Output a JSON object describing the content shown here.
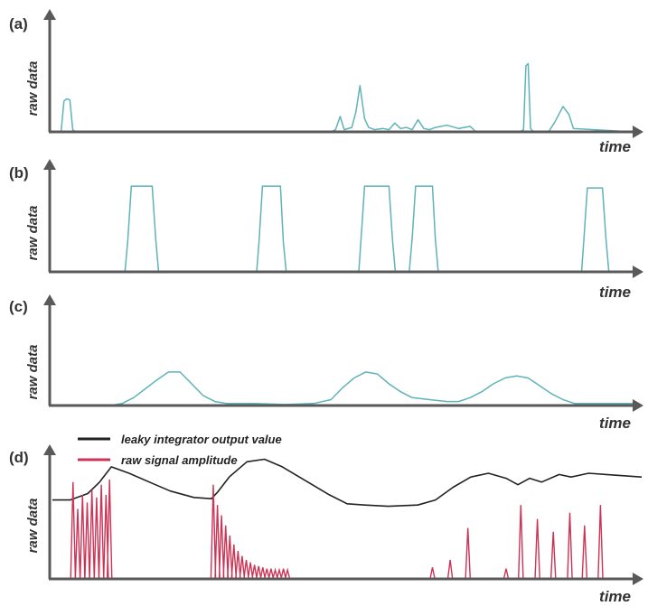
{
  "colors": {
    "axis": "#595959",
    "teal": "#5fb3b8",
    "black": "#222222",
    "red": "#cc3355"
  },
  "chart_data": [
    {
      "type": "line",
      "panel_label": "(a)",
      "xlabel": "time",
      "ylabel": "raw data",
      "xlim": [
        0,
        100
      ],
      "ylim": [
        0,
        100
      ],
      "grid": false,
      "series": [
        {
          "color": "#5fb3b8",
          "x": [
            0,
            1.5,
            2.0,
            2.5,
            3.0,
            3.5,
            4.0,
            48,
            48.8,
            49.6,
            50.3,
            51.6,
            52.3,
            53.0,
            53.8,
            54.5,
            55.5,
            57.0,
            58.0,
            59.0,
            60.0,
            61.0,
            62.0,
            63.0,
            64.0,
            65.0,
            66.0,
            68.0,
            70.0,
            72.0,
            73.0,
            80.5,
            81.2,
            81.6,
            82.0,
            82.4,
            82.9,
            85.5,
            86.5,
            87.2,
            88.0,
            89.0,
            89.8,
            100
          ],
          "y": [
            0,
            0,
            28,
            30,
            29,
            2,
            0,
            0,
            2,
            14,
            2,
            4,
            18,
            42,
            12,
            4,
            2,
            3,
            2,
            8,
            3,
            4,
            2,
            11,
            3,
            2,
            4,
            6,
            3,
            5,
            0,
            0,
            2,
            60,
            62,
            3,
            0,
            0,
            8,
            15,
            23,
            16,
            3,
            0
          ]
        }
      ]
    },
    {
      "type": "line",
      "panel_label": "(b)",
      "xlabel": "time",
      "ylabel": "raw data",
      "xlim": [
        0,
        100
      ],
      "ylim": [
        0,
        100
      ],
      "grid": false,
      "series": [
        {
          "color": "#5fb3b8",
          "x": [
            0,
            12.5,
            13.0,
            13.6,
            17.2,
            17.8,
            18.3,
            35.2,
            35.6,
            36.2,
            39.3,
            39.8,
            40.3,
            52.8,
            53.2,
            53.8,
            58.0,
            58.6,
            59.1,
            61.5,
            62.0,
            62.6,
            65.5,
            66.0,
            66.5,
            91.2,
            91.6,
            92.2,
            94.8,
            95.4,
            95.9,
            100
          ],
          "y": [
            0,
            0,
            36,
            94,
            94,
            36,
            0,
            0,
            33,
            94,
            94,
            33,
            0,
            0,
            36,
            94,
            94,
            36,
            0,
            0,
            36,
            94,
            94,
            36,
            0,
            0,
            36,
            92,
            92,
            36,
            0,
            0
          ]
        }
      ]
    },
    {
      "type": "line",
      "panel_label": "(c)",
      "xlabel": "time",
      "ylabel": "raw data",
      "xlim": [
        0,
        100
      ],
      "ylim": [
        0,
        100
      ],
      "grid": false,
      "series": [
        {
          "color": "#5fb3b8",
          "x": [
            0,
            10,
            12,
            14,
            16,
            18,
            20,
            22,
            24,
            26,
            28,
            30,
            35,
            40,
            45,
            48,
            50,
            52,
            54,
            56,
            58,
            60,
            62,
            65,
            68,
            70,
            72,
            74,
            76,
            78,
            80,
            82,
            84,
            86,
            88,
            90,
            100
          ],
          "y": [
            0,
            0,
            2,
            8,
            17,
            26,
            34,
            34,
            22,
            10,
            4,
            2,
            2,
            1,
            2,
            6,
            18,
            28,
            34,
            32,
            22,
            14,
            8,
            6,
            4,
            4,
            8,
            14,
            22,
            28,
            30,
            28,
            20,
            12,
            6,
            2,
            2
          ]
        }
      ]
    },
    {
      "type": "line",
      "panel_label": "(d)",
      "xlabel": "time",
      "ylabel": "raw data",
      "xlim": [
        0,
        100
      ],
      "ylim": [
        0,
        100
      ],
      "grid": false,
      "legend": "top-left",
      "series": [
        {
          "name": "leaky integrator output value",
          "color": "#222222",
          "x": [
            0,
            3,
            6,
            8,
            10,
            13,
            17,
            20,
            24,
            27,
            28,
            30,
            33,
            36,
            39,
            43,
            47,
            50,
            53,
            57,
            62,
            65,
            68,
            71,
            74,
            77,
            79,
            81,
            83,
            86,
            88,
            91,
            94,
            97,
            100
          ],
          "y": [
            62,
            62,
            67,
            76,
            88,
            83,
            75,
            69,
            64,
            63,
            68,
            80,
            92,
            94,
            88,
            77,
            66,
            59,
            58,
            57,
            58,
            62,
            72,
            80,
            83,
            79,
            74,
            79,
            76,
            82,
            80,
            83,
            82,
            81,
            80
          ]
        },
        {
          "name": "raw signal amplitude",
          "color": "#cc3355",
          "type": "spikes",
          "spikes": [
            {
              "x": 3.5,
              "h": 76
            },
            {
              "x": 4.3,
              "h": 55
            },
            {
              "x": 5.1,
              "h": 66
            },
            {
              "x": 5.9,
              "h": 60
            },
            {
              "x": 6.7,
              "h": 70
            },
            {
              "x": 7.5,
              "h": 64
            },
            {
              "x": 8.3,
              "h": 74
            },
            {
              "x": 9.1,
              "h": 66
            },
            {
              "x": 9.7,
              "h": 78
            },
            {
              "x": 27.3,
              "h": 74
            },
            {
              "x": 28.0,
              "h": 58
            },
            {
              "x": 28.7,
              "h": 50
            },
            {
              "x": 29.4,
              "h": 42
            },
            {
              "x": 30.1,
              "h": 34
            },
            {
              "x": 30.8,
              "h": 27
            },
            {
              "x": 31.5,
              "h": 22
            },
            {
              "x": 32.2,
              "h": 18
            },
            {
              "x": 32.9,
              "h": 15
            },
            {
              "x": 33.6,
              "h": 13
            },
            {
              "x": 34.3,
              "h": 11
            },
            {
              "x": 35.0,
              "h": 10
            },
            {
              "x": 35.7,
              "h": 9
            },
            {
              "x": 36.4,
              "h": 8
            },
            {
              "x": 37.1,
              "h": 8
            },
            {
              "x": 37.8,
              "h": 7
            },
            {
              "x": 38.5,
              "h": 7
            },
            {
              "x": 39.2,
              "h": 8
            },
            {
              "x": 39.9,
              "h": 7
            },
            {
              "x": 64.5,
              "h": 9
            },
            {
              "x": 67.5,
              "h": 15
            },
            {
              "x": 70.5,
              "h": 40
            },
            {
              "x": 77.0,
              "h": 8
            },
            {
              "x": 79.5,
              "h": 58
            },
            {
              "x": 82.3,
              "h": 47
            },
            {
              "x": 85.0,
              "h": 37
            },
            {
              "x": 87.8,
              "h": 52
            },
            {
              "x": 90.3,
              "h": 42
            },
            {
              "x": 93.0,
              "h": 58
            }
          ]
        }
      ]
    }
  ]
}
